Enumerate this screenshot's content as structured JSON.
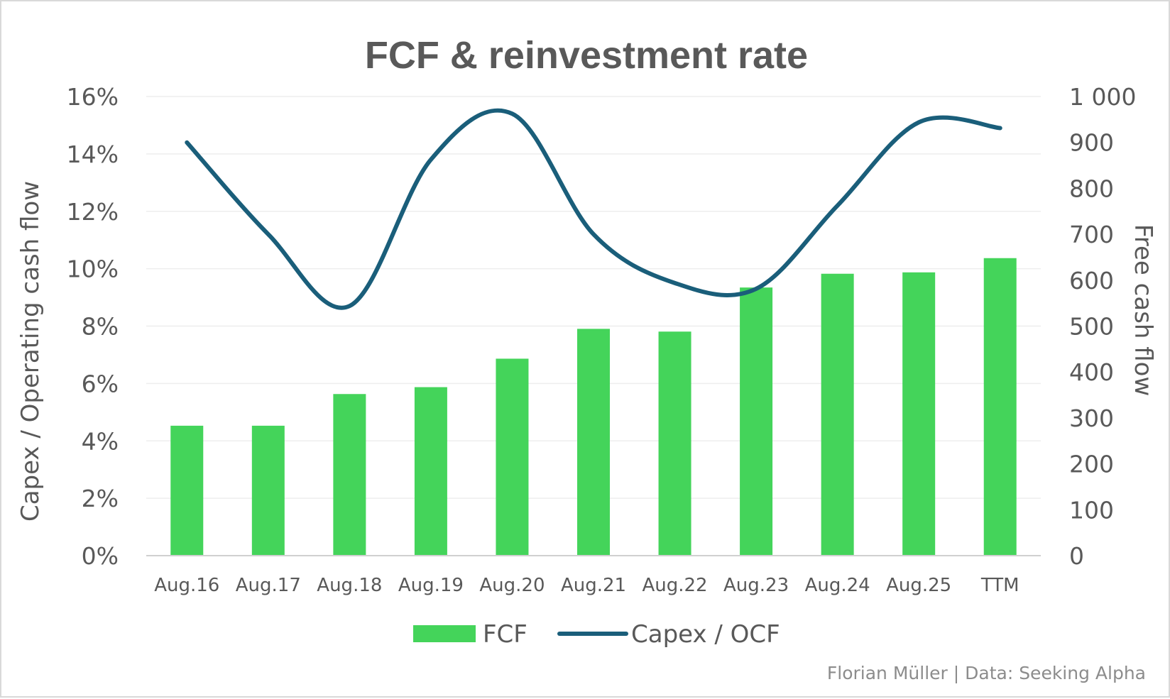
{
  "chart_data": {
    "type": "bar",
    "title": "FCF & reinvestment rate",
    "categories": [
      "Aug.16",
      "Aug.17",
      "Aug.18",
      "Aug.19",
      "Aug.20",
      "Aug.21",
      "Aug.22",
      "Aug.23",
      "Aug.24",
      "Aug.25",
      "TTM"
    ],
    "series": [
      {
        "name": "FCF",
        "type": "bar",
        "axis": "right",
        "color": "#44d45a",
        "values": [
          283,
          283,
          352,
          367,
          429,
          494,
          488,
          584,
          614,
          617,
          648
        ]
      },
      {
        "name": "Capex / OCF",
        "type": "line",
        "axis": "left",
        "color": "#1a5e7a",
        "smooth": true,
        "values": [
          0.144,
          0.112,
          0.087,
          0.138,
          0.154,
          0.112,
          0.095,
          0.093,
          0.122,
          0.151,
          0.149
        ]
      }
    ],
    "ylabel_left": "Capex / Operating cash flow",
    "ylabel_right": "Free cash flow",
    "ylim_left": [
      0,
      0.16
    ],
    "ylim_right": [
      0,
      1000
    ],
    "yticks_left": [
      "0%",
      "2%",
      "4%",
      "6%",
      "8%",
      "10%",
      "12%",
      "14%",
      "16%"
    ],
    "yticks_right": [
      "0",
      "100",
      "200",
      "300",
      "400",
      "500",
      "600",
      "700",
      "800",
      "900",
      "1 000"
    ],
    "grid": true,
    "legend_position": "bottom"
  },
  "source_note": "Florian Müller | Data: Seeking Alpha"
}
